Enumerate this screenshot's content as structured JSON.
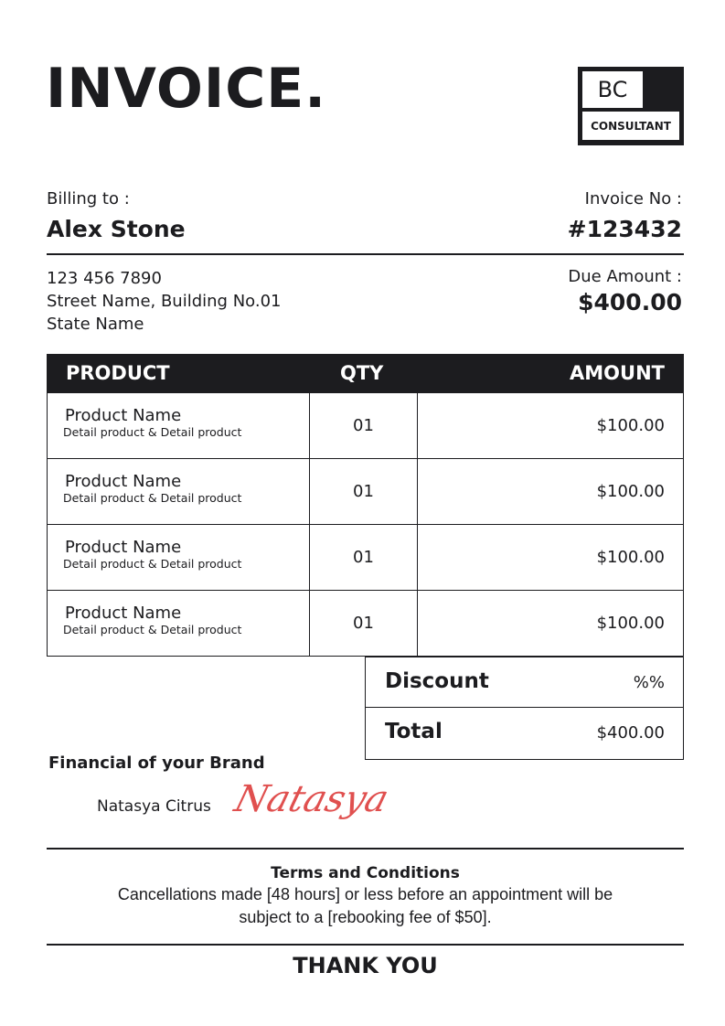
{
  "title": "INVOICE.",
  "logo": {
    "initials": "BC",
    "name": "CONSULTANT"
  },
  "billing": {
    "label": "Billing to :",
    "name": "Alex Stone",
    "phone": "123 456 7890",
    "street": "Street Name, Building No.01",
    "state": "State Name"
  },
  "invoice": {
    "label": "Invoice No :",
    "number": "#123432",
    "due_label": "Due Amount :",
    "due": "$400.00"
  },
  "table": {
    "headers": [
      "PRODUCT",
      "QTY",
      "AMOUNT"
    ],
    "rows": [
      {
        "name": "Product Name",
        "detail": "Detail product & Detail product",
        "qty": "01",
        "amount": "$100.00"
      },
      {
        "name": "Product Name",
        "detail": "Detail product & Detail product",
        "qty": "01",
        "amount": "$100.00"
      },
      {
        "name": "Product Name",
        "detail": "Detail product & Detail product",
        "qty": "01",
        "amount": "$100.00"
      },
      {
        "name": "Product Name",
        "detail": "Detail product & Detail product",
        "qty": "01",
        "amount": "$100.00"
      }
    ]
  },
  "summary": {
    "discount_label": "Discount",
    "discount": "%%",
    "total_label": "Total",
    "total": "$400.00"
  },
  "signature": {
    "title": "Financial of your Brand",
    "script": "Natasya",
    "name": "Natasya Citrus",
    "color": "#e0504f"
  },
  "terms": {
    "title": "Terms and Conditions",
    "line1": "Cancellations made [48 hours] or less before an appointment will be",
    "line2": "subject to a [rebooking fee of $50]."
  },
  "footer": "THANK YOU"
}
